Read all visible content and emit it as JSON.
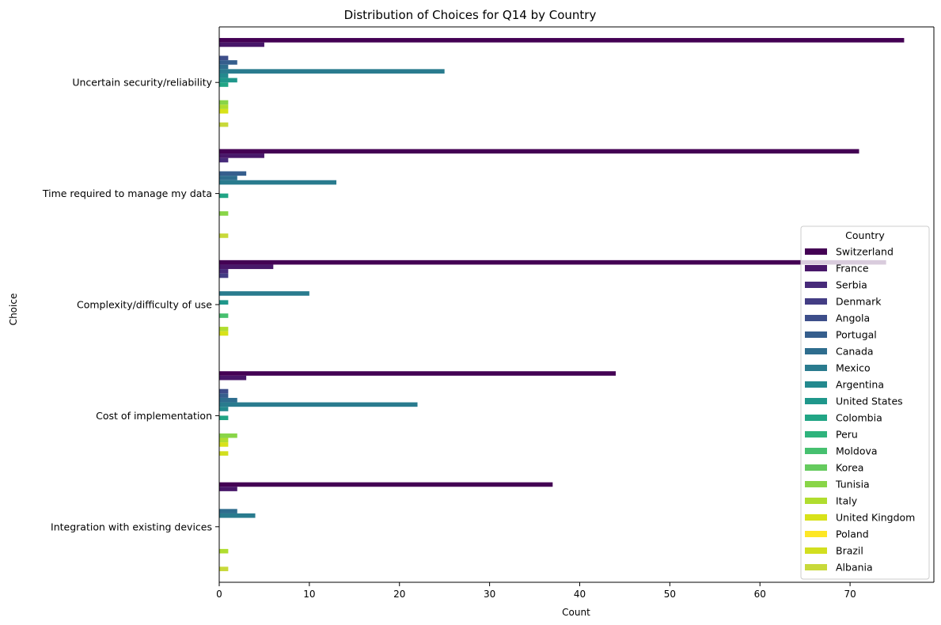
{
  "chart_data": {
    "type": "bar",
    "orientation": "horizontal",
    "title": "Distribution of Choices for Q14 by Country",
    "xlabel": "Count",
    "ylabel": "Choice",
    "xlim": [
      0,
      80
    ],
    "xticks": [
      0,
      10,
      20,
      30,
      40,
      50,
      60,
      70
    ],
    "grid": false,
    "legend": {
      "title": "Country",
      "placement": "center-right"
    },
    "categories": [
      "Uncertain security/reliability",
      "Time required to manage my data",
      "Complexity/difficulty of use",
      "Cost of implementation",
      "Integration with existing devices"
    ],
    "series": [
      {
        "name": "Switzerland",
        "color": "#440154",
        "values": [
          76,
          71,
          74,
          44,
          37
        ]
      },
      {
        "name": "France",
        "color": "#481769",
        "values": [
          5,
          5,
          6,
          3,
          2
        ]
      },
      {
        "name": "Serbia",
        "color": "#472a7a",
        "values": [
          0,
          1,
          1,
          0,
          0
        ]
      },
      {
        "name": "Denmark",
        "color": "#433d84",
        "values": [
          0,
          0,
          1,
          0,
          0
        ]
      },
      {
        "name": "Angola",
        "color": "#3d4e8a",
        "values": [
          1,
          0,
          0,
          1,
          0
        ]
      },
      {
        "name": "Portugal",
        "color": "#355e8d",
        "values": [
          2,
          3,
          0,
          1,
          0
        ]
      },
      {
        "name": "Canada",
        "color": "#2e6d8e",
        "values": [
          1,
          2,
          0,
          2,
          2
        ]
      },
      {
        "name": "Mexico",
        "color": "#297b8e",
        "values": [
          25,
          13,
          10,
          22,
          4
        ]
      },
      {
        "name": "Argentina",
        "color": "#23898e",
        "values": [
          1,
          0,
          0,
          1,
          0
        ]
      },
      {
        "name": "United States",
        "color": "#1f978b",
        "values": [
          2,
          0,
          1,
          0,
          0
        ]
      },
      {
        "name": "Colombia",
        "color": "#21a585",
        "values": [
          1,
          1,
          0,
          1,
          0
        ]
      },
      {
        "name": "Peru",
        "color": "#2eb37c",
        "values": [
          0,
          0,
          0,
          0,
          0
        ]
      },
      {
        "name": "Moldova",
        "color": "#46c06f",
        "values": [
          0,
          0,
          1,
          0,
          0
        ]
      },
      {
        "name": "Korea",
        "color": "#65cb5e",
        "values": [
          0,
          0,
          0,
          0,
          0
        ]
      },
      {
        "name": "Tunisia",
        "color": "#89d548",
        "values": [
          1,
          1,
          0,
          2,
          0
        ]
      },
      {
        "name": "Italy",
        "color": "#b0dd2f",
        "values": [
          1,
          0,
          1,
          1,
          1
        ]
      },
      {
        "name": "United Kingdom",
        "color": "#d8e219",
        "values": [
          1,
          0,
          1,
          1,
          0
        ]
      },
      {
        "name": "Poland",
        "color": "#fde725",
        "values": [
          0,
          0,
          0,
          0,
          0
        ]
      },
      {
        "name": "Brazil",
        "color": "#d2df1f",
        "values": [
          0,
          0,
          0,
          1,
          0
        ]
      },
      {
        "name": "Albania",
        "color": "#c8d93a",
        "values": [
          1,
          1,
          0,
          0,
          1
        ]
      }
    ]
  }
}
